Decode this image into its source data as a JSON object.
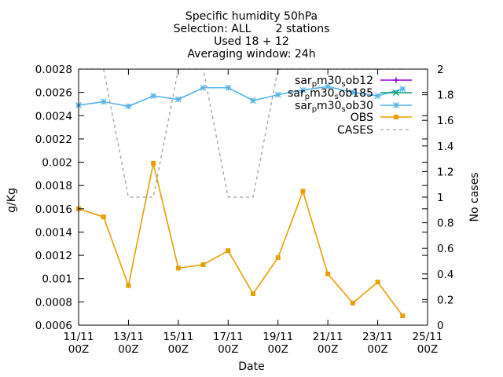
{
  "chart_data": {
    "type": "line",
    "title_lines": [
      "Specific humidity 50hPa",
      "Selection: ALL       2 stations",
      "Used 18 + 12",
      "Averaging window: 24h"
    ],
    "xlabel": "Date",
    "ylabel": "g/Kg",
    "y2label": "No cases",
    "x_ticks": [
      {
        "day": 11,
        "label": "11/11",
        "sub": "00Z"
      },
      {
        "day": 13,
        "label": "13/11",
        "sub": "00Z"
      },
      {
        "day": 15,
        "label": "15/11",
        "sub": "00Z"
      },
      {
        "day": 17,
        "label": "17/11",
        "sub": "00Z"
      },
      {
        "day": 19,
        "label": "19/11",
        "sub": "00Z"
      },
      {
        "day": 21,
        "label": "21/11",
        "sub": "00Z"
      },
      {
        "day": 23,
        "label": "23/11",
        "sub": "00Z"
      },
      {
        "day": 25,
        "label": "25/11",
        "sub": "00Z"
      }
    ],
    "xlim": [
      11,
      25
    ],
    "ylim": [
      0.0006,
      0.0028
    ],
    "y_ticks": [
      "0.0006",
      "0.0008",
      "0.001",
      "0.0012",
      "0.0014",
      "0.0016",
      "0.0018",
      "0.002",
      "0.0022",
      "0.0024",
      "0.0026",
      "0.0028"
    ],
    "y2lim": [
      0,
      2
    ],
    "y2_ticks": [
      "0",
      "0.2",
      "0.4",
      "0.6",
      "0.8",
      "1",
      "1.2",
      "1.4",
      "1.6",
      "1.8",
      "2"
    ],
    "grid": false,
    "legend_position": "top-right",
    "series": [
      {
        "key": "s12",
        "legend": {
          "pre": "sar",
          "sub": "p",
          "post": "m30",
          "sub2": "s",
          "post2": "ob12"
        },
        "axis": "y",
        "color": "#9400d3",
        "marker": "plus",
        "dash": "",
        "x": [],
        "y": []
      },
      {
        "key": "s185",
        "legend": {
          "pre": "sar",
          "sub": "p",
          "post": "m30",
          "sub2": "s",
          "post2": "ob185"
        },
        "axis": "y",
        "color": "#009e73",
        "marker": "cross",
        "dash": "",
        "x": [],
        "y": []
      },
      {
        "key": "s30",
        "legend": {
          "pre": "sar",
          "sub": "p",
          "post": "m30",
          "sub2": "s",
          "post2": "ob30"
        },
        "axis": "y",
        "color": "#56b4e9",
        "marker": "star",
        "dash": "",
        "x": [
          11,
          12,
          13,
          14,
          15,
          16,
          17,
          18,
          19,
          20,
          21,
          22,
          23,
          24
        ],
        "y": [
          0.00249,
          0.00252,
          0.00248,
          0.00257,
          0.00254,
          0.00264,
          0.00264,
          0.00253,
          0.00258,
          0.00262,
          0.00265,
          0.0026,
          0.00257,
          0.00263
        ]
      },
      {
        "key": "obs",
        "legend": {
          "pre": "OBS"
        },
        "axis": "y",
        "color": "#e69f00",
        "marker": "box",
        "dash": "",
        "x": [
          11,
          12,
          13,
          14,
          15,
          16,
          17,
          18,
          19,
          20,
          21,
          22,
          23,
          24
        ],
        "y": [
          0.0016,
          0.00153,
          0.00094,
          0.00199,
          0.00109,
          0.00112,
          0.00124,
          0.00087,
          0.00118,
          0.00175,
          0.00104,
          0.00079,
          0.00097,
          0.00068
        ]
      },
      {
        "key": "cases",
        "legend": {
          "pre": "CASES"
        },
        "axis": "y2",
        "color": "#a0a0a0",
        "marker": "none",
        "dash": "4,4",
        "x": [
          11,
          12,
          13,
          14,
          15,
          16,
          17,
          18,
          19,
          20,
          21,
          22,
          23,
          24
        ],
        "y": [
          2,
          2,
          1,
          1,
          2,
          2,
          1,
          1,
          2,
          2,
          2,
          2,
          2,
          2
        ]
      }
    ]
  }
}
